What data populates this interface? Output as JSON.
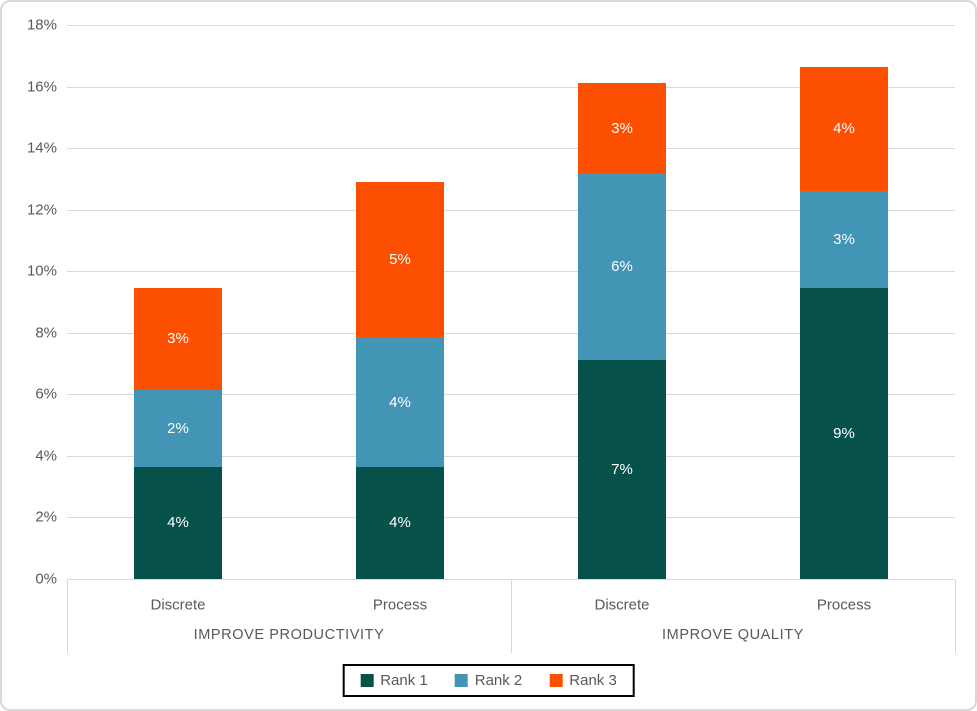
{
  "chart_data": {
    "type": "bar",
    "stacked": true,
    "title": "",
    "y_axis": {
      "min": 0,
      "max": 18,
      "step": 2,
      "unit": "%",
      "tick_labels": [
        "0%",
        "2%",
        "4%",
        "6%",
        "8%",
        "10%",
        "12%",
        "14%",
        "16%",
        "18%"
      ]
    },
    "grid": true,
    "groups": [
      {
        "label": "IMPROVE PRODUCTIVITY",
        "categories": [
          "Discrete",
          "Process"
        ]
      },
      {
        "label": "IMPROVE QUALITY",
        "categories": [
          "Discrete",
          "Process"
        ]
      }
    ],
    "categories": [
      "Discrete",
      "Process",
      "Discrete",
      "Process"
    ],
    "series": [
      {
        "name": "Rank 1",
        "color": "#06514a",
        "values": [
          3.65,
          3.65,
          7.1,
          9.45
        ],
        "data_labels": [
          "4%",
          "4%",
          "7%",
          "9%"
        ]
      },
      {
        "name": "Rank 2",
        "color": "#4295b5",
        "values": [
          2.5,
          4.2,
          6.1,
          3.15
        ],
        "data_labels": [
          "2%",
          "4%",
          "6%",
          "3%"
        ]
      },
      {
        "name": "Rank 3",
        "color": "#fc5000",
        "values": [
          3.3,
          5.05,
          2.9,
          4.05
        ],
        "data_labels": [
          "3%",
          "5%",
          "3%",
          "4%"
        ]
      }
    ],
    "totals": [
      9.45,
      12.9,
      16.1,
      16.65
    ],
    "legend": {
      "position": "bottom",
      "entries": [
        "Rank 1",
        "Rank 2",
        "Rank 3"
      ]
    }
  },
  "colors": {
    "background": "#ffffff",
    "gridline": "#d9d9d9",
    "axis_text": "#595959",
    "data_label_text": "#ffffff",
    "legend_border": "#000000",
    "chart_border": "#d9d9d9"
  }
}
